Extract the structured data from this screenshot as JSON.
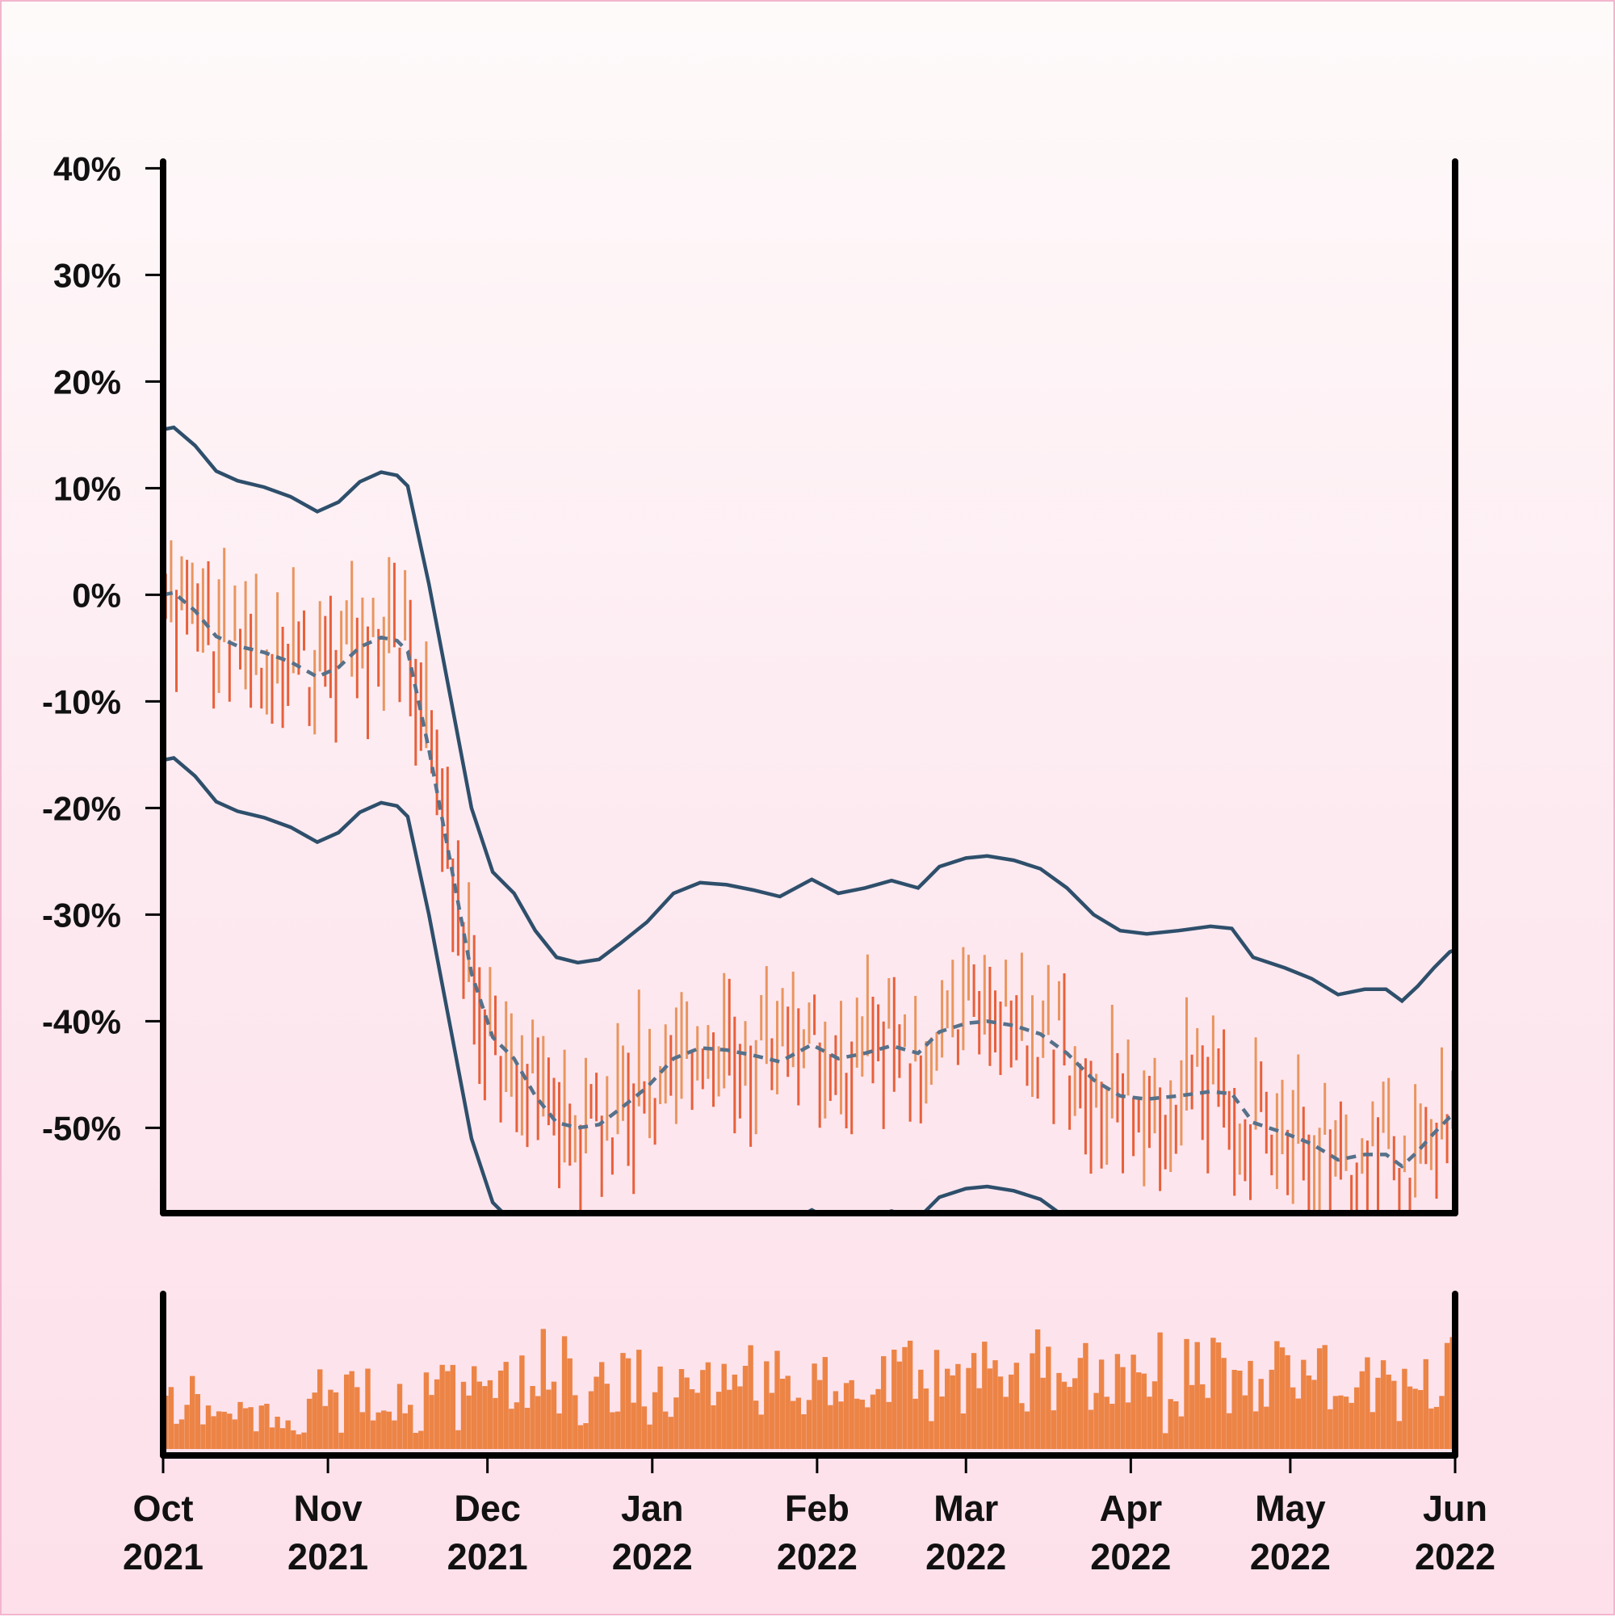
{
  "chart_data": {
    "type": "line",
    "title": "",
    "xlabel": "",
    "ylabel": "",
    "x_range": [
      "2021-10-01",
      "2022-06-01"
    ],
    "ylim": [
      -58,
      42
    ],
    "y_ticks": [
      40,
      30,
      20,
      10,
      0,
      -10,
      -20,
      -30,
      -40,
      -50
    ],
    "y_tick_labels": [
      "40%",
      "30%",
      "20%",
      "10%",
      "0%",
      "-10%",
      "-20%",
      "-30%",
      "-40%",
      "-50%"
    ],
    "x_ticks": [
      {
        "date": "2021-10-01",
        "line1": "Oct",
        "line2": "2021"
      },
      {
        "date": "2021-11-01",
        "line1": "Nov",
        "line2": "2021"
      },
      {
        "date": "2021-12-01",
        "line1": "Dec",
        "line2": "2021"
      },
      {
        "date": "2022-01-01",
        "line1": "Jan",
        "line2": "2022"
      },
      {
        "date": "2022-02-01",
        "line1": "Feb",
        "line2": "2022"
      },
      {
        "date": "2022-03-01",
        "line1": "Mar",
        "line2": "2022"
      },
      {
        "date": "2022-04-01",
        "line1": "Apr",
        "line2": "2022"
      },
      {
        "date": "2022-05-01",
        "line1": "May",
        "line2": "2022"
      },
      {
        "date": "2022-06-01",
        "line1": "Jun",
        "line2": "2022"
      }
    ],
    "colors": {
      "band": "#2e4f6b",
      "mean": "#56718a",
      "up": "#e9955f",
      "down": "#e8603a",
      "volume": "#ec8446"
    },
    "grid": false,
    "legend": "none",
    "band_offset": 15.5,
    "series": [
      {
        "style": "dashed",
        "role": "moving average",
        "points": [
          [
            "2021-10-01",
            0.0
          ],
          [
            "2021-10-03",
            0.2
          ],
          [
            "2021-10-07",
            -1.5
          ],
          [
            "2021-10-11",
            -3.9
          ],
          [
            "2021-10-15",
            -4.8
          ],
          [
            "2021-10-20",
            -5.4
          ],
          [
            "2021-10-25",
            -6.3
          ],
          [
            "2021-10-30",
            -7.7
          ],
          [
            "2021-11-03",
            -6.8
          ],
          [
            "2021-11-07",
            -4.9
          ],
          [
            "2021-11-11",
            -4.0
          ],
          [
            "2021-11-14",
            -4.3
          ],
          [
            "2021-11-16",
            -5.3
          ],
          [
            "2021-11-20",
            -14.5
          ],
          [
            "2021-11-24",
            -25.0
          ],
          [
            "2021-11-28",
            -35.5
          ],
          [
            "2021-12-02",
            -41.5
          ],
          [
            "2021-12-06",
            -43.5
          ],
          [
            "2021-12-10",
            -47.0
          ],
          [
            "2021-12-14",
            -49.5
          ],
          [
            "2021-12-18",
            -50.0
          ],
          [
            "2021-12-22",
            -49.7
          ],
          [
            "2021-12-26",
            -48.2
          ],
          [
            "2021-12-31",
            -46.2
          ],
          [
            "2022-01-05",
            -43.5
          ],
          [
            "2022-01-10",
            -42.5
          ],
          [
            "2022-01-15",
            -42.7
          ],
          [
            "2022-01-20",
            -43.2
          ],
          [
            "2022-01-25",
            -43.8
          ],
          [
            "2022-01-31",
            -42.2
          ],
          [
            "2022-02-05",
            -43.5
          ],
          [
            "2022-02-10",
            -43.0
          ],
          [
            "2022-02-15",
            -42.3
          ],
          [
            "2022-02-20",
            -43.0
          ],
          [
            "2022-02-24",
            -41.0
          ],
          [
            "2022-03-01",
            -40.2
          ],
          [
            "2022-03-05",
            -40.0
          ],
          [
            "2022-03-10",
            -40.4
          ],
          [
            "2022-03-15",
            -41.2
          ],
          [
            "2022-03-20",
            -43.0
          ],
          [
            "2022-03-25",
            -45.5
          ],
          [
            "2022-03-30",
            -47.0
          ],
          [
            "2022-04-04",
            -47.3
          ],
          [
            "2022-04-10",
            -47.0
          ],
          [
            "2022-04-16",
            -46.6
          ],
          [
            "2022-04-20",
            -46.8
          ],
          [
            "2022-04-24",
            -49.5
          ],
          [
            "2022-04-30",
            -50.5
          ],
          [
            "2022-05-05",
            -51.5
          ],
          [
            "2022-05-10",
            -53.0
          ],
          [
            "2022-05-15",
            -52.5
          ],
          [
            "2022-05-19",
            -52.5
          ],
          [
            "2022-05-22",
            -53.6
          ],
          [
            "2022-05-25",
            -52.2
          ],
          [
            "2022-05-28",
            -50.5
          ],
          [
            "2022-05-31",
            -49.0
          ],
          [
            "2022-06-01",
            -48.8
          ]
        ]
      }
    ]
  }
}
